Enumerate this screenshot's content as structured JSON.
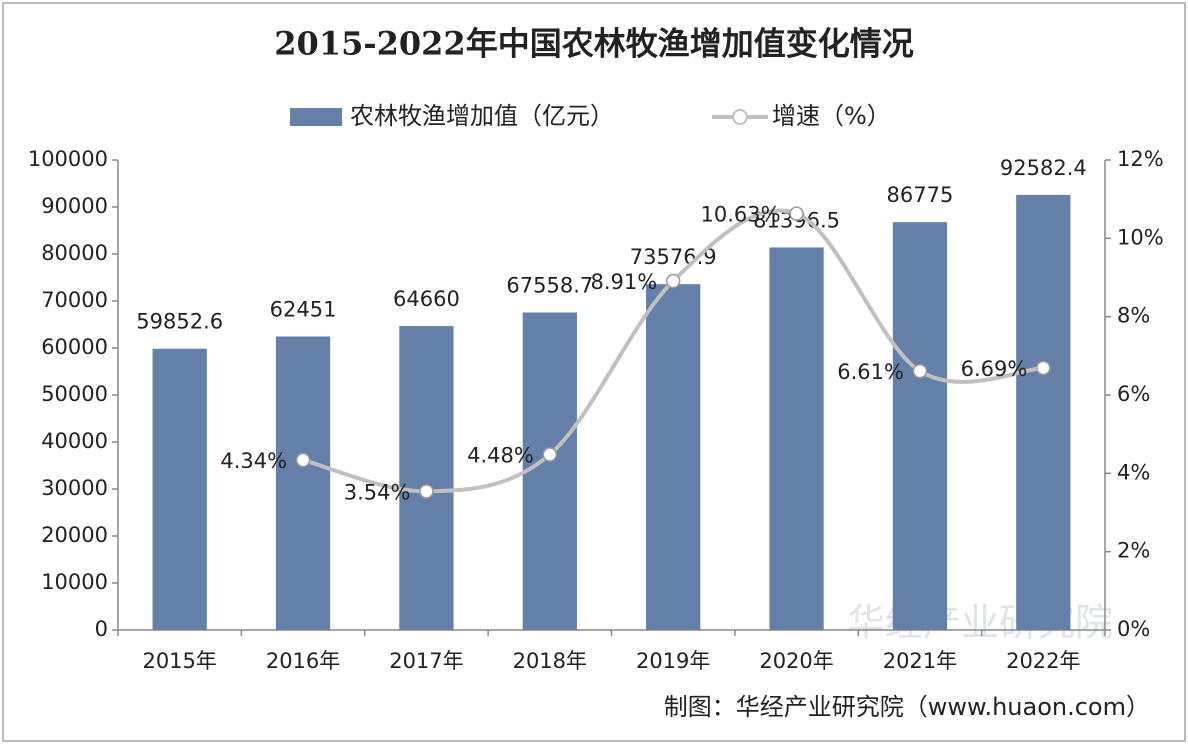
{
  "chart_data": {
    "type": "bar",
    "title": "2015-2022年中国农林牧渔增加值变化情况",
    "categories": [
      "2015年",
      "2016年",
      "2017年",
      "2018年",
      "2019年",
      "2020年",
      "2021年",
      "2022年"
    ],
    "series": [
      {
        "name": "农林牧渔增加值（亿元）",
        "type": "bar",
        "color": "#6480a8",
        "values": [
          59852.6,
          62451,
          64660,
          67558.7,
          73576.9,
          81396.5,
          86775,
          92582.4
        ]
      },
      {
        "name": "增速（%）",
        "type": "line",
        "axis": "y2",
        "color": "#c0c0c0",
        "values": [
          null,
          4.34,
          3.54,
          4.48,
          8.91,
          10.63,
          6.61,
          6.69
        ],
        "value_labels": [
          null,
          "4.34%",
          "3.54%",
          "4.48%",
          "8.91%",
          "10.63%",
          "6.61%",
          "6.69%"
        ]
      }
    ],
    "ylim": [
      0,
      100000
    ],
    "yticks": [
      0,
      10000,
      20000,
      30000,
      40000,
      50000,
      60000,
      70000,
      80000,
      90000,
      100000
    ],
    "y2lim": [
      0,
      12
    ],
    "y2ticks": [
      {
        "value": 0,
        "label": "0%"
      },
      {
        "value": 2,
        "label": "2%"
      },
      {
        "value": 4,
        "label": "4%"
      },
      {
        "value": 6,
        "label": "6%"
      },
      {
        "value": 8,
        "label": "8%"
      },
      {
        "value": 10,
        "label": "10%"
      },
      {
        "value": 12,
        "label": "12%"
      }
    ],
    "legend": "top",
    "source": "制图：华经产业研究院（www.huaon.com）",
    "watermark": "华经产业研究院"
  }
}
